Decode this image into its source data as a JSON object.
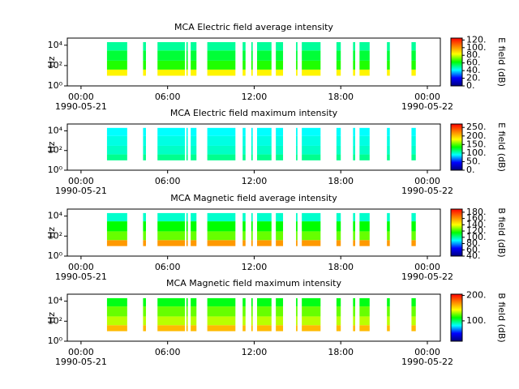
{
  "chart_data": [
    {
      "type": "heatmap",
      "title": "MCA  Electric field average intensity",
      "ylabel": "Hz",
      "yscale": "log",
      "ylim": [
        1,
        50000
      ],
      "yticks": [
        {
          "value": 1,
          "label": "10⁰"
        },
        {
          "value": 100,
          "label": "10²"
        },
        {
          "value": 10000,
          "label": "10⁴"
        }
      ],
      "xlim": [
        -0.95,
        24.9
      ],
      "xticks": [
        {
          "value": 0,
          "label": "00:00"
        },
        {
          "value": 6,
          "label": "06:00"
        },
        {
          "value": 12,
          "label": "12:00"
        },
        {
          "value": 18,
          "label": "18:00"
        },
        {
          "value": 24,
          "label": "00:00"
        }
      ],
      "date_labels": [
        {
          "value": 0,
          "label": "1990-05-21"
        },
        {
          "value": 24,
          "label": "1990-05-22"
        }
      ],
      "segments": [
        [
          1.8,
          3.2
        ],
        [
          4.3,
          4.5
        ],
        [
          5.3,
          7.2
        ],
        [
          7.3,
          7.4
        ],
        [
          7.6,
          8.0
        ],
        [
          8.75,
          10.7
        ],
        [
          11.2,
          11.4
        ],
        [
          11.8,
          11.9
        ],
        [
          12.2,
          13.2
        ],
        [
          13.5,
          14.0
        ],
        [
          14.9,
          15.0
        ],
        [
          15.3,
          16.6
        ],
        [
          17.7,
          18.0
        ],
        [
          18.85,
          19.0
        ],
        [
          19.3,
          20.0
        ],
        [
          21.2,
          21.4
        ],
        [
          22.9,
          23.2
        ]
      ],
      "freq_bins": [
        10,
        40,
        300,
        3000,
        20000
      ],
      "values": [
        85,
        65,
        58,
        50
      ],
      "clim": [
        0,
        125
      ],
      "cticks": [
        {
          "value": 0,
          "label": "0."
        },
        {
          "value": 20,
          "label": "20."
        },
        {
          "value": 40,
          "label": "40."
        },
        {
          "value": 60,
          "label": "60."
        },
        {
          "value": 80,
          "label": "80."
        },
        {
          "value": 100,
          "label": "100."
        },
        {
          "value": 120,
          "label": "120."
        }
      ],
      "clabel": "E field (dB)",
      "colormap": [
        "#00007f",
        "#0000ff",
        "#00ffff",
        "#00ff00",
        "#ffff00",
        "#ff8000",
        "#ff0000"
      ]
    },
    {
      "type": "heatmap",
      "title": "MCA  Electric field maximum intensity",
      "ylabel": "Hz",
      "yscale": "log",
      "ylim": [
        1,
        50000
      ],
      "yticks": [
        {
          "value": 1,
          "label": "10⁰"
        },
        {
          "value": 100,
          "label": "10²"
        },
        {
          "value": 10000,
          "label": "10⁴"
        }
      ],
      "xlim": [
        -0.95,
        24.9
      ],
      "xticks": [
        {
          "value": 0,
          "label": "00:00"
        },
        {
          "value": 6,
          "label": "06:00"
        },
        {
          "value": 12,
          "label": "12:00"
        },
        {
          "value": 18,
          "label": "18:00"
        },
        {
          "value": 24,
          "label": "00:00"
        }
      ],
      "date_labels": [
        {
          "value": 0,
          "label": "1990-05-21"
        },
        {
          "value": 24,
          "label": "1990-05-22"
        }
      ],
      "segments": [
        [
          1.8,
          3.2
        ],
        [
          4.3,
          4.5
        ],
        [
          5.3,
          7.2
        ],
        [
          7.3,
          7.4
        ],
        [
          7.6,
          8.0
        ],
        [
          8.75,
          10.7
        ],
        [
          11.2,
          11.4
        ],
        [
          11.8,
          11.9
        ],
        [
          12.2,
          13.2
        ],
        [
          13.5,
          14.0
        ],
        [
          14.9,
          15.0
        ],
        [
          15.3,
          16.6
        ],
        [
          17.7,
          18.0
        ],
        [
          18.85,
          19.0
        ],
        [
          19.3,
          20.0
        ],
        [
          21.2,
          21.4
        ],
        [
          22.9,
          23.2
        ]
      ],
      "freq_bins": [
        10,
        40,
        300,
        3000,
        20000
      ],
      "values": [
        110,
        100,
        95,
        90
      ],
      "clim": [
        0,
        270
      ],
      "cticks": [
        {
          "value": 0,
          "label": "0."
        },
        {
          "value": 50,
          "label": "50."
        },
        {
          "value": 100,
          "label": "100."
        },
        {
          "value": 150,
          "label": "150."
        },
        {
          "value": 200,
          "label": "200."
        },
        {
          "value": 250,
          "label": "250."
        }
      ],
      "clabel": "E field (dB)",
      "colormap": [
        "#00007f",
        "#0000ff",
        "#00ffff",
        "#00ff00",
        "#ffff00",
        "#ff8000",
        "#ff0000"
      ]
    },
    {
      "type": "heatmap",
      "title": "MCA  Magnetic field average intensity",
      "ylabel": "Hz",
      "yscale": "log",
      "ylim": [
        1,
        50000
      ],
      "yticks": [
        {
          "value": 1,
          "label": "10⁰"
        },
        {
          "value": 100,
          "label": "10²"
        },
        {
          "value": 10000,
          "label": "10⁴"
        }
      ],
      "xlim": [
        -0.95,
        24.9
      ],
      "xticks": [
        {
          "value": 0,
          "label": "00:00"
        },
        {
          "value": 6,
          "label": "06:00"
        },
        {
          "value": 12,
          "label": "12:00"
        },
        {
          "value": 18,
          "label": "18:00"
        },
        {
          "value": 24,
          "label": "00:00"
        }
      ],
      "date_labels": [
        {
          "value": 0,
          "label": "1990-05-21"
        },
        {
          "value": 24,
          "label": "1990-05-22"
        }
      ],
      "segments": [
        [
          1.8,
          3.2
        ],
        [
          4.3,
          4.5
        ],
        [
          5.3,
          7.2
        ],
        [
          7.3,
          7.4
        ],
        [
          7.6,
          8.0
        ],
        [
          8.75,
          10.7
        ],
        [
          11.2,
          11.4
        ],
        [
          11.8,
          11.9
        ],
        [
          12.2,
          13.2
        ],
        [
          13.5,
          14.0
        ],
        [
          14.9,
          15.0
        ],
        [
          15.3,
          16.6
        ],
        [
          17.7,
          18.0
        ],
        [
          18.85,
          19.0
        ],
        [
          19.3,
          20.0
        ],
        [
          21.2,
          21.4
        ],
        [
          22.9,
          23.2
        ]
      ],
      "freq_bins": [
        10,
        40,
        300,
        3000,
        20000
      ],
      "values": [
        160,
        125,
        115,
        95
      ],
      "clim": [
        40,
        190
      ],
      "cticks": [
        {
          "value": 40,
          "label": "40."
        },
        {
          "value": 60,
          "label": "60."
        },
        {
          "value": 80,
          "label": "80."
        },
        {
          "value": 100,
          "label": "100."
        },
        {
          "value": 120,
          "label": "120."
        },
        {
          "value": 140,
          "label": "140."
        },
        {
          "value": 160,
          "label": "160."
        },
        {
          "value": 180,
          "label": "180."
        }
      ],
      "clabel": "B field (dB)",
      "colormap": [
        "#00007f",
        "#0000ff",
        "#00ffff",
        "#00ff00",
        "#ffff00",
        "#ff8000",
        "#ff0000"
      ]
    },
    {
      "type": "heatmap",
      "title": "MCA  Magnetic field maximum intensity",
      "ylabel": "Hz",
      "yscale": "log",
      "ylim": [
        1,
        50000
      ],
      "yticks": [
        {
          "value": 1,
          "label": "10⁰"
        },
        {
          "value": 100,
          "label": "10²"
        },
        {
          "value": 10000,
          "label": "10⁴"
        }
      ],
      "xlim": [
        -0.95,
        24.9
      ],
      "xticks": [
        {
          "value": 0,
          "label": "00:00"
        },
        {
          "value": 6,
          "label": "06:00"
        },
        {
          "value": 12,
          "label": "12:00"
        },
        {
          "value": 18,
          "label": "18:00"
        },
        {
          "value": 24,
          "label": "00:00"
        }
      ],
      "date_labels": [
        {
          "value": 0,
          "label": "1990-05-21"
        },
        {
          "value": 24,
          "label": "1990-05-22"
        }
      ],
      "segments": [
        [
          1.8,
          3.2
        ],
        [
          4.3,
          4.5
        ],
        [
          5.3,
          7.2
        ],
        [
          7.3,
          7.4
        ],
        [
          7.6,
          8.0
        ],
        [
          8.75,
          10.7
        ],
        [
          11.2,
          11.4
        ],
        [
          11.8,
          11.9
        ],
        [
          12.2,
          13.2
        ],
        [
          13.5,
          14.0
        ],
        [
          14.9,
          15.0
        ],
        [
          15.3,
          16.6
        ],
        [
          17.7,
          18.0
        ],
        [
          18.85,
          19.0
        ],
        [
          19.3,
          20.0
        ],
        [
          21.2,
          21.4
        ],
        [
          22.9,
          23.2
        ]
      ],
      "freq_bins": [
        10,
        40,
        300,
        3000,
        20000
      ],
      "values": [
        160,
        135,
        125,
        110
      ],
      "clim": [
        20,
        205
      ],
      "cticks": [
        {
          "value": 100,
          "label": "100."
        },
        {
          "value": 200,
          "label": "200."
        }
      ],
      "clabel": "B field (dB)",
      "colormap": [
        "#00007f",
        "#0000ff",
        "#00ffff",
        "#00ff00",
        "#ffff00",
        "#ff8000",
        "#ff0000"
      ]
    }
  ]
}
